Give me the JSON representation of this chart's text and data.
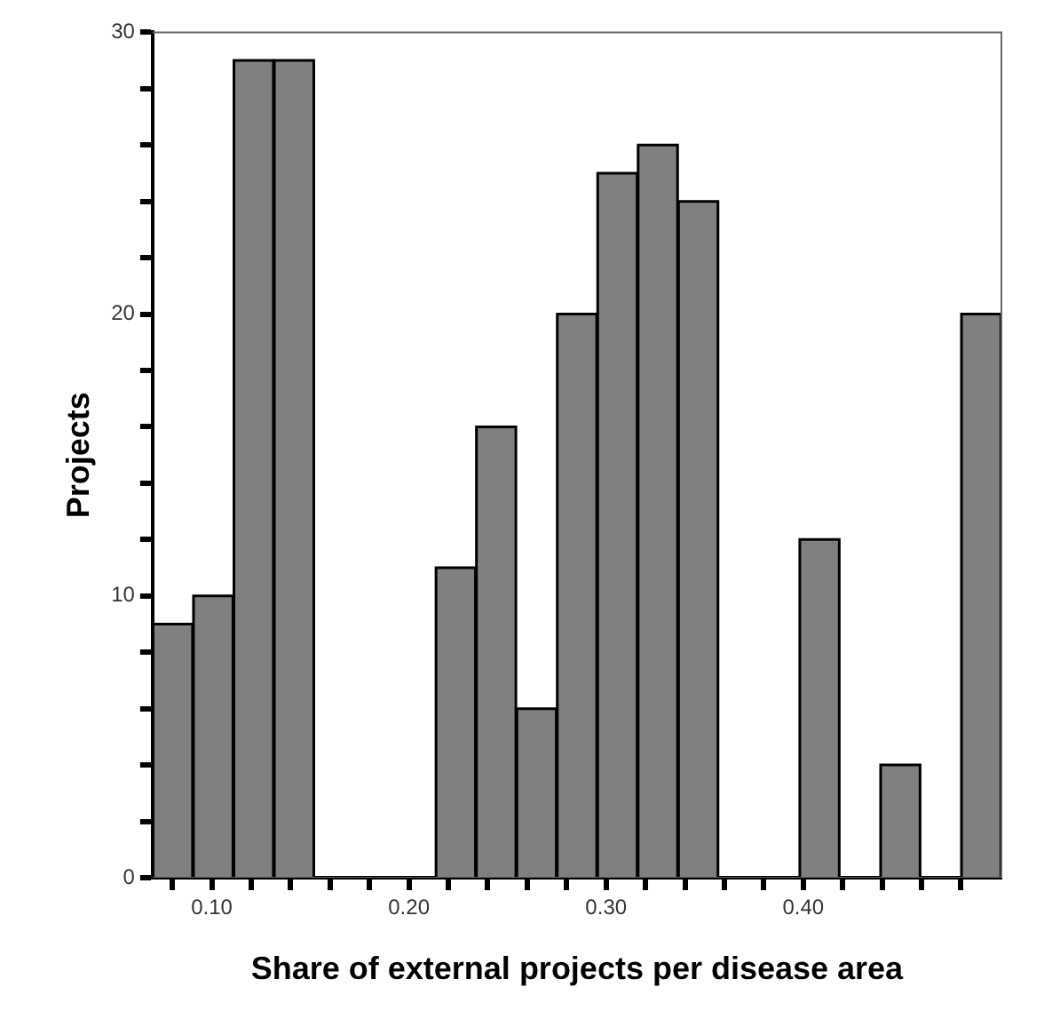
{
  "chart_data": {
    "type": "histogram",
    "xlabel": "Share of external projects per disease area",
    "ylabel": "Projects",
    "bins": [
      0.07,
      0.0905,
      0.111,
      0.1315,
      0.152,
      0.1725,
      0.193,
      0.2135,
      0.234,
      0.2545,
      0.275,
      0.2955,
      0.316,
      0.3365,
      0.357,
      0.3775,
      0.398,
      0.4185,
      0.439,
      0.4595,
      0.48,
      0.5005
    ],
    "values": [
      9,
      10,
      29,
      29,
      0,
      0,
      0,
      11,
      16,
      6,
      20,
      25,
      26,
      24,
      0,
      0,
      12,
      0,
      4,
      0,
      20
    ],
    "color": "#808080",
    "xlim": [
      0.07,
      0.5005
    ],
    "xticks": [
      {
        "value": 0.08,
        "label": null
      },
      {
        "value": 0.1,
        "label": "0.10"
      },
      {
        "value": 0.12,
        "label": null
      },
      {
        "value": 0.14,
        "label": null
      },
      {
        "value": 0.16,
        "label": null
      },
      {
        "value": 0.18,
        "label": null
      },
      {
        "value": 0.2,
        "label": "0.20"
      },
      {
        "value": 0.22,
        "label": null
      },
      {
        "value": 0.24,
        "label": null
      },
      {
        "value": 0.26,
        "label": null
      },
      {
        "value": 0.28,
        "label": null
      },
      {
        "value": 0.3,
        "label": "0.30"
      },
      {
        "value": 0.32,
        "label": null
      },
      {
        "value": 0.34,
        "label": null
      },
      {
        "value": 0.36,
        "label": null
      },
      {
        "value": 0.38,
        "label": null
      },
      {
        "value": 0.4,
        "label": "0.40"
      },
      {
        "value": 0.42,
        "label": null
      },
      {
        "value": 0.44,
        "label": null
      },
      {
        "value": 0.46,
        "label": null
      },
      {
        "value": 0.48,
        "label": null
      }
    ],
    "ylim": [
      0,
      30
    ],
    "yticks": [
      0,
      {
        "value": 2,
        "label": null
      },
      {
        "value": 4,
        "label": null
      },
      {
        "value": 6,
        "label": null
      },
      {
        "value": 8,
        "label": null
      },
      10,
      {
        "value": 12,
        "label": null
      },
      {
        "value": 14,
        "label": null
      },
      {
        "value": 16,
        "label": null
      },
      {
        "value": 18,
        "label": null
      },
      20,
      {
        "value": 22,
        "label": null
      },
      {
        "value": 24,
        "label": null
      },
      {
        "value": 26,
        "label": null
      },
      {
        "value": 28,
        "label": null
      },
      30
    ],
    "grid": false,
    "legend": false
  }
}
